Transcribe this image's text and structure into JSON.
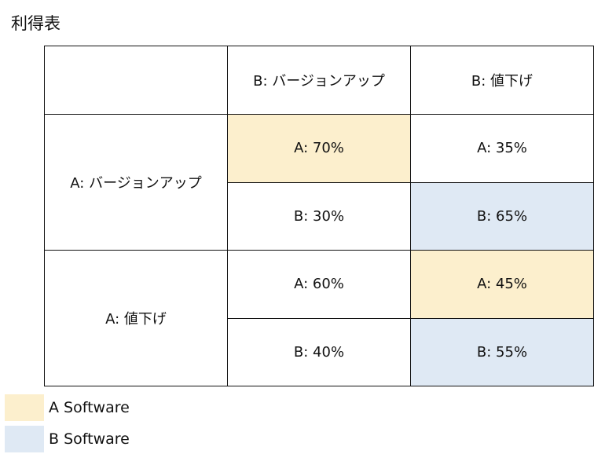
{
  "title": "利得表",
  "colors": {
    "a_software": "#fcefcd",
    "b_software": "#dfe9f4"
  },
  "table": {
    "col_headers": [
      "B: バージョンアップ",
      "B: 値下げ"
    ],
    "rows": [
      {
        "header": "A: バージョンアップ",
        "cells": [
          {
            "a": "A: 70%",
            "b": "B: 30%",
            "highlight_a": true,
            "highlight_b": false
          },
          {
            "a": "A: 35%",
            "b": "B: 65%",
            "highlight_a": false,
            "highlight_b": true
          }
        ]
      },
      {
        "header": "A: 値下げ",
        "cells": [
          {
            "a": "A: 60%",
            "b": "B: 40%",
            "highlight_a": false,
            "highlight_b": false
          },
          {
            "a": "A: 45%",
            "b": "B: 55%",
            "highlight_a": true,
            "highlight_b": true
          }
        ]
      }
    ]
  },
  "legend": {
    "a_label": "A Software",
    "b_label": "B Software"
  }
}
